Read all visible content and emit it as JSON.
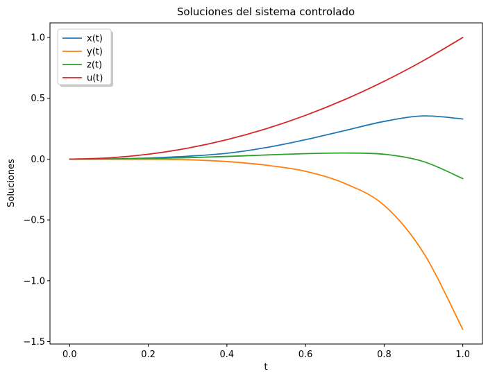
{
  "chart_data": {
    "type": "line",
    "title": "Soluciones del sistema controlado",
    "xlabel": "t",
    "ylabel": "Soluciones",
    "xlim": [
      -0.05,
      1.05
    ],
    "ylim": [
      -1.52,
      1.12
    ],
    "xticks": [
      0.0,
      0.2,
      0.4,
      0.6,
      0.8,
      1.0
    ],
    "xtick_labels": [
      "0.0",
      "0.2",
      "0.4",
      "0.6",
      "0.8",
      "1.0"
    ],
    "yticks": [
      -1.5,
      -1.0,
      -0.5,
      0.0,
      0.5,
      1.0
    ],
    "ytick_labels": [
      "−1.5",
      "−1.0",
      "−0.5",
      "0.0",
      "0.5",
      "1.0"
    ],
    "grid": false,
    "legend": "top-left",
    "x": [
      0.0,
      0.1,
      0.2,
      0.3,
      0.4,
      0.5,
      0.6,
      0.7,
      0.8,
      0.9,
      1.0
    ],
    "series": [
      {
        "name": "x(t)",
        "color": "#1f77b4",
        "values": [
          0.0,
          0.0015,
          0.009,
          0.024,
          0.048,
          0.095,
          0.16,
          0.235,
          0.31,
          0.355,
          0.33
        ]
      },
      {
        "name": "y(t)",
        "color": "#ff7f0e",
        "values": [
          0.0,
          0.0,
          -0.001,
          -0.005,
          -0.02,
          -0.05,
          -0.1,
          -0.2,
          -0.38,
          -0.77,
          -1.4
        ]
      },
      {
        "name": "z(t)",
        "color": "#2ca02c",
        "values": [
          0.0,
          0.001,
          0.005,
          0.012,
          0.022,
          0.034,
          0.045,
          0.05,
          0.04,
          -0.02,
          -0.16
        ]
      },
      {
        "name": "u(t)",
        "color": "#d62728",
        "values": [
          0.0,
          0.01,
          0.04,
          0.09,
          0.16,
          0.25,
          0.36,
          0.49,
          0.64,
          0.81,
          1.0
        ]
      }
    ]
  }
}
